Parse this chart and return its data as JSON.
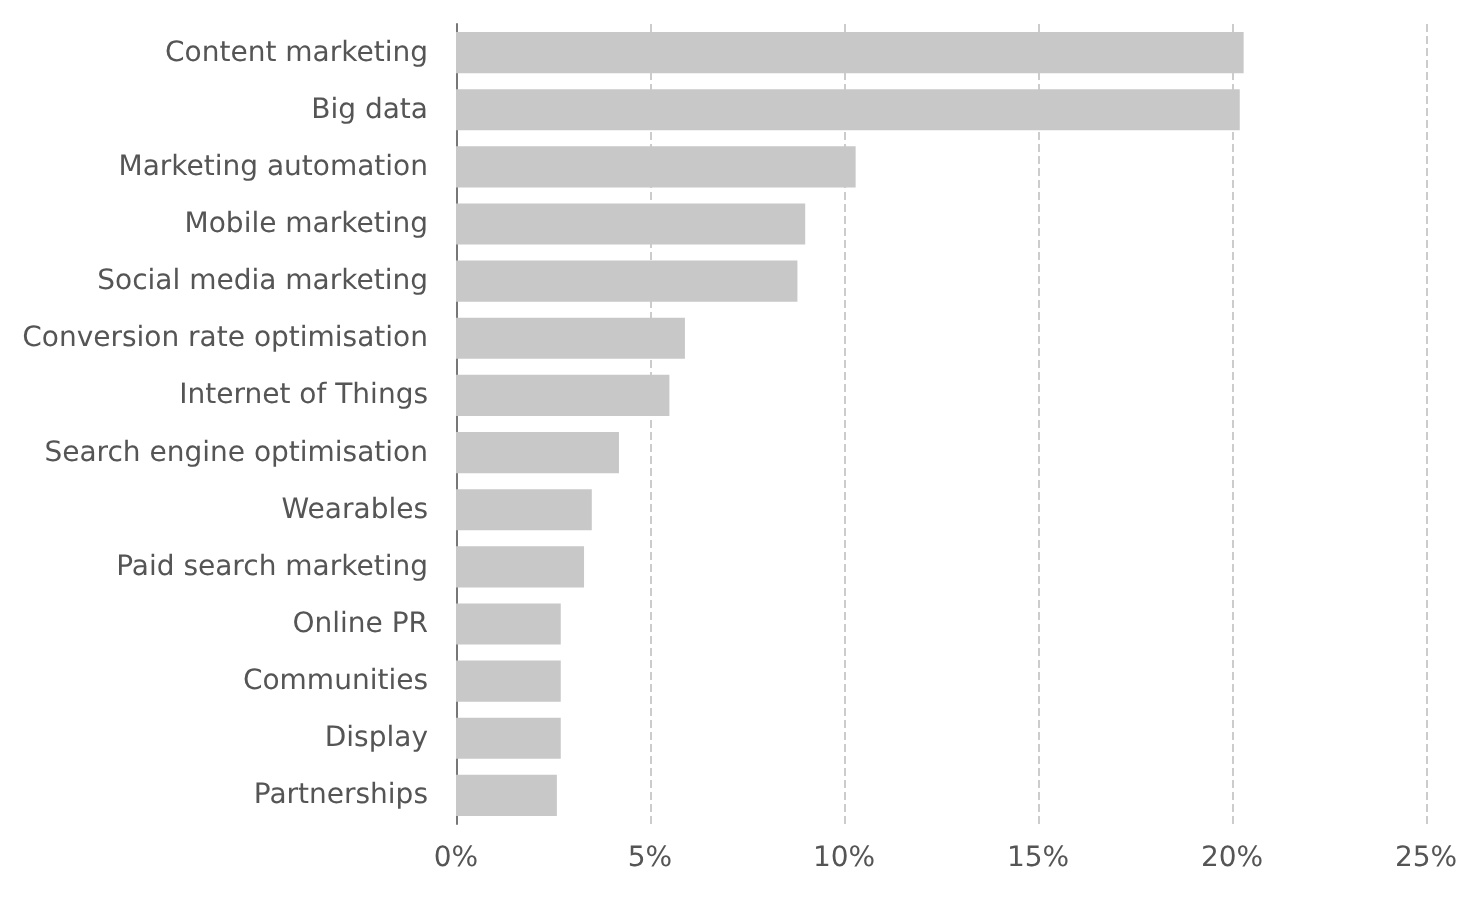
{
  "chart_data": {
    "type": "bar",
    "orientation": "horizontal",
    "categories": [
      "Content marketing",
      "Big data",
      "Marketing automation",
      "Mobile marketing",
      "Social media marketing",
      "Conversion rate optimisation",
      "Internet of Things",
      "Search engine optimisation",
      "Wearables",
      "Paid search marketing",
      "Online PR",
      "Communities",
      "Display",
      "Partnerships"
    ],
    "values": [
      20.3,
      20.2,
      10.3,
      9.0,
      8.8,
      5.9,
      5.5,
      4.2,
      3.5,
      3.3,
      2.7,
      2.7,
      2.7,
      2.6
    ],
    "color": "#c8c8c8",
    "xlim": [
      0,
      25
    ],
    "xticks": [
      {
        "value": 0,
        "label": "0%"
      },
      {
        "value": 5,
        "label": "5%"
      },
      {
        "value": 10,
        "label": "10%"
      },
      {
        "value": 15,
        "label": "15%"
      },
      {
        "value": 20,
        "label": "20%"
      },
      {
        "value": 25,
        "label": "25%"
      }
    ],
    "grid": "x"
  }
}
